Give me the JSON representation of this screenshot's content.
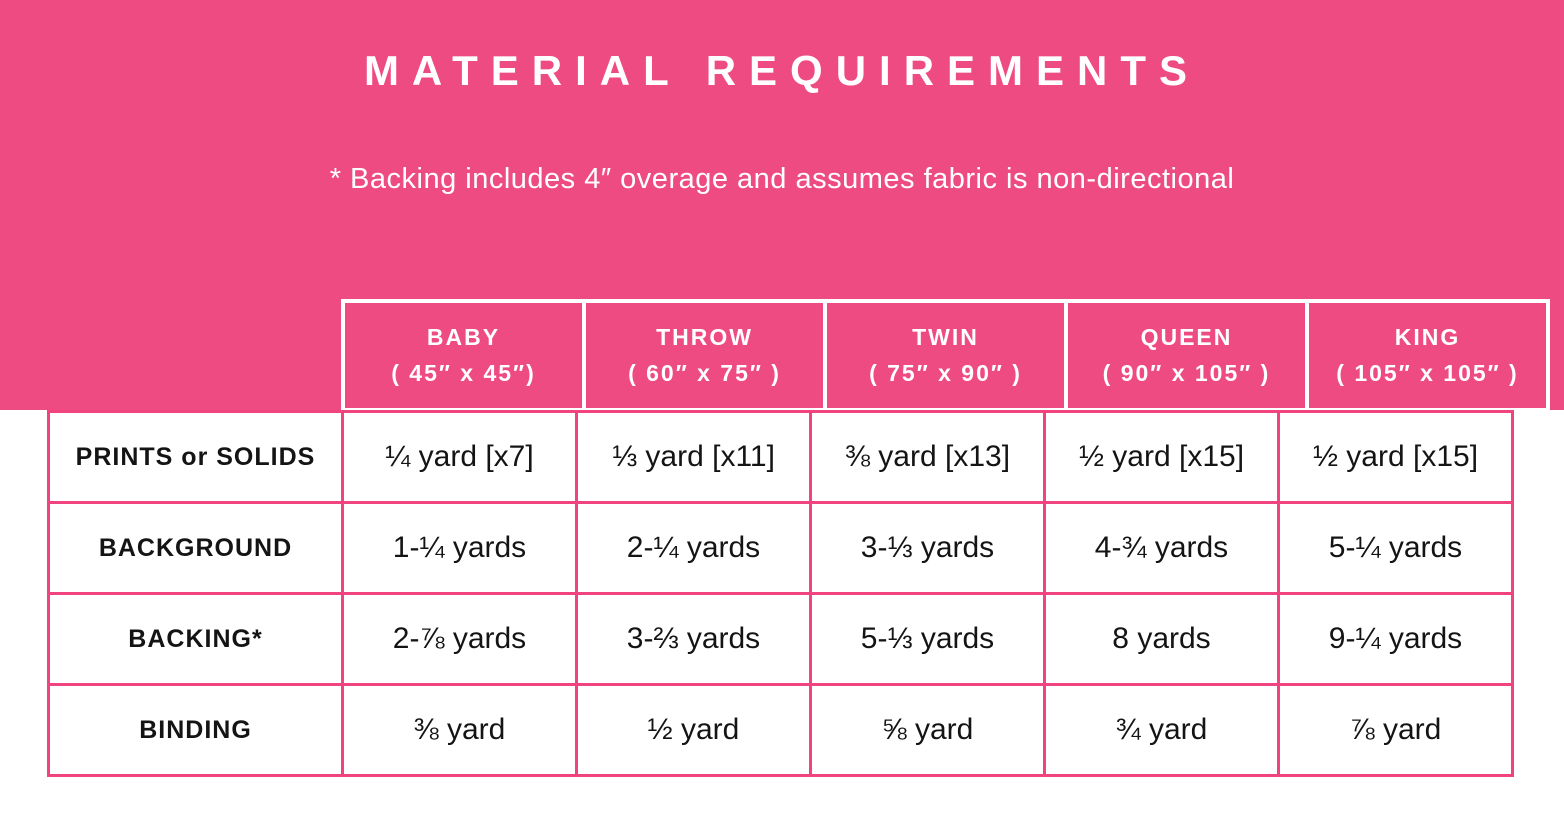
{
  "page": {
    "title": "MATERIAL REQUIREMENTS",
    "note": "* Backing includes 4″ overage and assumes fabric is non-directional"
  },
  "colors": {
    "pink_background": "#EE4B82",
    "table_border_pink": "#F1437F",
    "header_border_white": "#FFFFFF",
    "body_text": "#141414"
  },
  "table": {
    "columns": [
      {
        "name": "BABY",
        "size": "( 45″ x 45″)"
      },
      {
        "name": "THROW",
        "size": "( 60″ x 75″ )"
      },
      {
        "name": "TWIN",
        "size": "( 75″ x 90″ )"
      },
      {
        "name": "QUEEN",
        "size": "( 90″ x 105″ )"
      },
      {
        "name": "KING",
        "size": "( 105″ x 105″ )"
      }
    ],
    "rows": [
      {
        "label": "PRINTS or SOLIDS",
        "values": [
          "¼ yard [x7]",
          "⅓ yard [x11]",
          "⅜ yard [x13]",
          "½ yard [x15]",
          "½ yard [x15]"
        ]
      },
      {
        "label": "BACKGROUND",
        "values": [
          "1-¼ yards",
          "2-¼ yards",
          "3-⅓ yards",
          "4-¾ yards",
          "5-¼ yards"
        ]
      },
      {
        "label": "BACKING*",
        "values": [
          "2-⅞ yards",
          "3-⅔ yards",
          "5-⅓ yards",
          "8 yards",
          "9-¼ yards"
        ]
      },
      {
        "label": "BINDING",
        "values": [
          "⅜ yard",
          "½ yard",
          "⅝ yard",
          "¾ yard",
          "⅞ yard"
        ]
      }
    ]
  }
}
